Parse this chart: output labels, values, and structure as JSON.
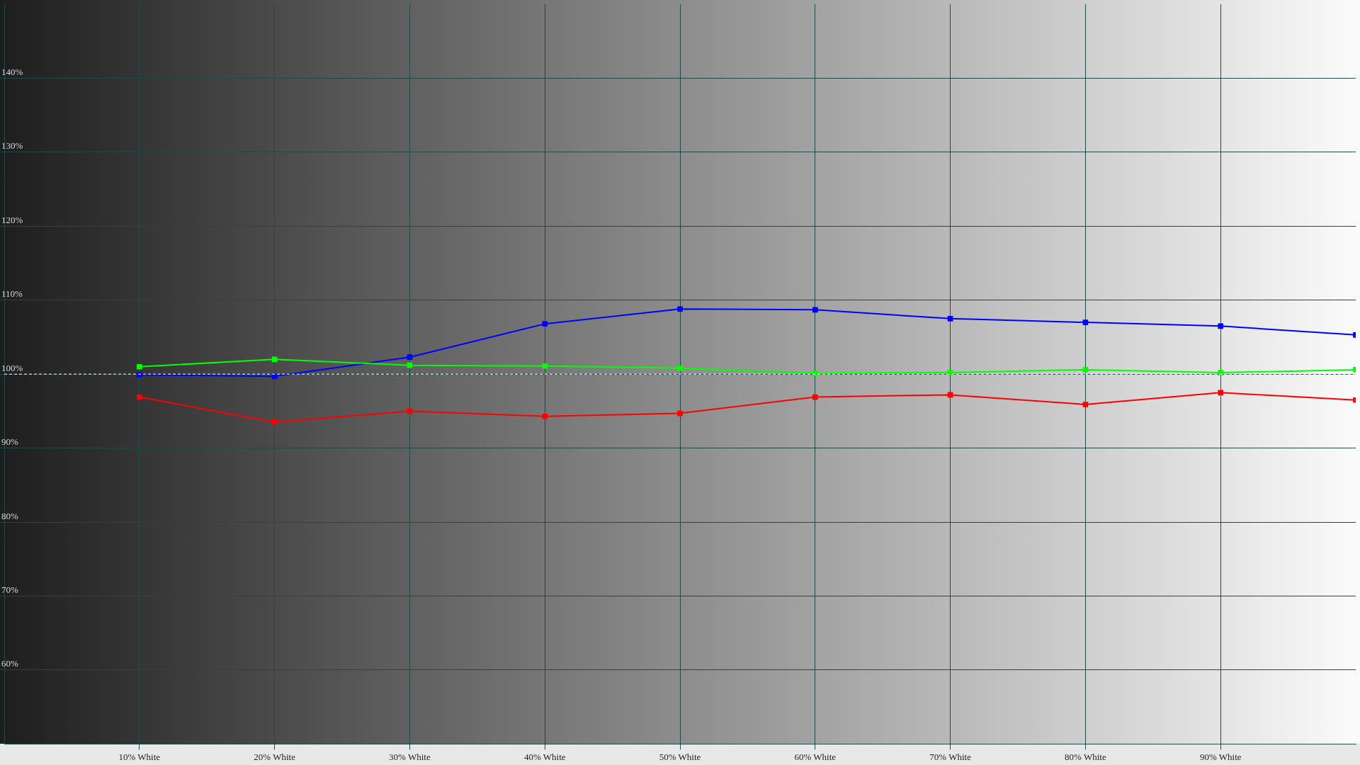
{
  "chart_data": {
    "type": "line",
    "x": [
      10,
      20,
      30,
      40,
      50,
      60,
      70,
      80,
      90,
      100
    ],
    "xlim": [
      0,
      100
    ],
    "xticks": [
      {
        "value": 10,
        "label": "10% White"
      },
      {
        "value": 20,
        "label": "20% White"
      },
      {
        "value": 30,
        "label": "30% White"
      },
      {
        "value": 40,
        "label": "40% White"
      },
      {
        "value": 50,
        "label": "50% White"
      },
      {
        "value": 60,
        "label": "60% White"
      },
      {
        "value": 70,
        "label": "70% White"
      },
      {
        "value": 80,
        "label": "80% White"
      },
      {
        "value": 90,
        "label": "90% White"
      }
    ],
    "ylim": [
      50,
      150
    ],
    "yticks": [
      {
        "value": 60,
        "label": "60%"
      },
      {
        "value": 70,
        "label": "70%"
      },
      {
        "value": 80,
        "label": "80%"
      },
      {
        "value": 90,
        "label": "90%"
      },
      {
        "value": 100,
        "label": "100%"
      },
      {
        "value": 110,
        "label": "110%"
      },
      {
        "value": 120,
        "label": "120%"
      },
      {
        "value": 130,
        "label": "130%"
      },
      {
        "value": 140,
        "label": "140%"
      }
    ],
    "series": [
      {
        "color": "#ff0000",
        "values": [
          96.9,
          93.5,
          95.0,
          94.3,
          94.7,
          96.9,
          97.2,
          95.9,
          97.5,
          96.5
        ]
      },
      {
        "color": "#00ff00",
        "values": [
          101.0,
          102.0,
          101.2,
          101.1,
          100.8,
          100.1,
          100.2,
          100.6,
          100.2,
          100.6
        ]
      },
      {
        "color": "#0000ff",
        "values": [
          99.9,
          99.7,
          102.3,
          106.8,
          108.8,
          108.7,
          107.5,
          107.0,
          106.5,
          105.3
        ]
      }
    ],
    "ref_lines": [
      {
        "axis": "y",
        "value": 100,
        "color": "#ffffff",
        "line_style": "dashed"
      }
    ],
    "grid": true,
    "legend": false,
    "marker": "square",
    "line_style": "solid"
  }
}
